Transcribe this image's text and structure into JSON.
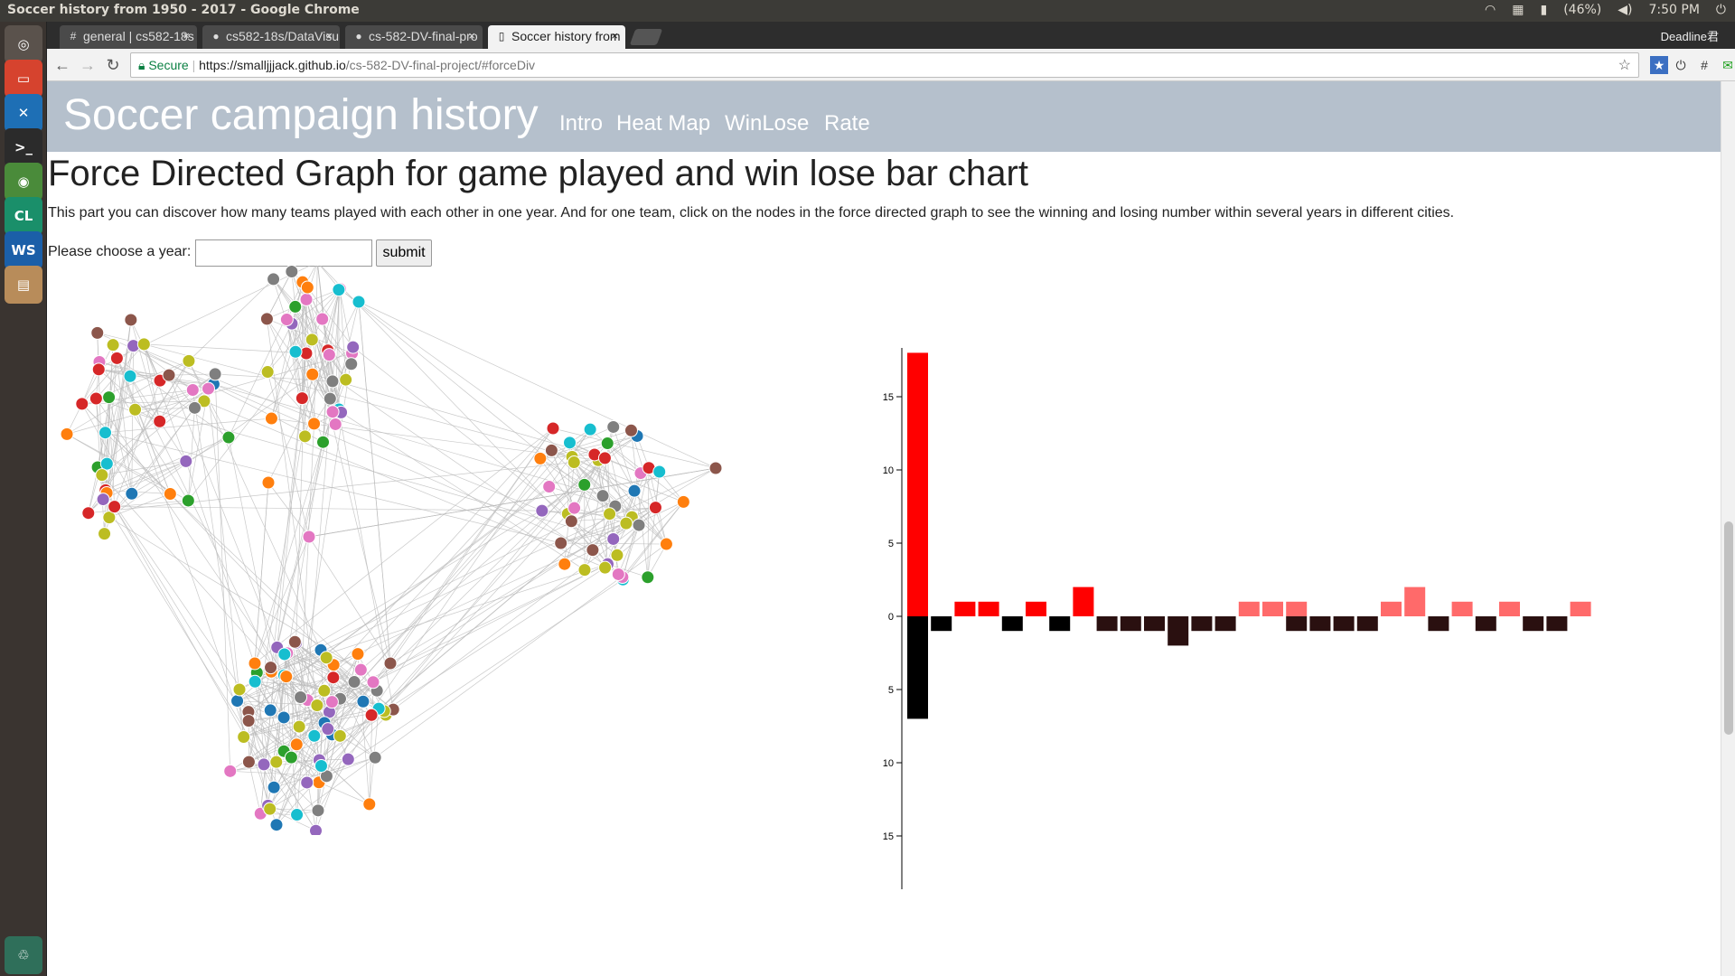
{
  "os": {
    "window_title": "Soccer history from 1950 - 2017 - Google Chrome",
    "battery": "(46%)",
    "clock": "7:50 PM"
  },
  "browser": {
    "tabs": [
      {
        "label": "general | cs582-18s",
        "icon": "slack-icon"
      },
      {
        "label": "cs582-18s/DataVisu",
        "icon": "github-icon"
      },
      {
        "label": "cs-582-DV-final-pro",
        "icon": "github-icon"
      },
      {
        "label": "Soccer history from",
        "icon": "page-icon"
      }
    ],
    "profile": "Deadline君",
    "secure_label": "Secure",
    "url_host": "https://smalljjjack.github.io",
    "url_path": "/cs-582-DV-final-project/#forceDiv"
  },
  "site": {
    "title": "Soccer campaign history",
    "nav": [
      "Intro",
      "Heat Map",
      "WinLose",
      "Rate"
    ]
  },
  "section": {
    "heading": "Force Directed Graph for game played and win lose bar chart",
    "intro": "This part you can discover how many teams played with each other in one year. And for one team, click on the nodes in the force directed graph to see the winning and losing number within several years in different cities.",
    "year_label": "Please choose a year:",
    "year_value": "",
    "submit_label": "submit"
  },
  "chart_data": {
    "type": "bar",
    "title": "",
    "xlabel": "",
    "ylabel": "",
    "ylim": [
      -18,
      18
    ],
    "yticks_top": [
      "15",
      "10",
      "5",
      "0"
    ],
    "yticks_bottom": [
      "5",
      "10",
      "15"
    ],
    "series": [
      {
        "values": [
          18,
          0,
          1,
          1,
          0,
          1,
          0,
          2,
          0,
          0,
          0,
          0,
          0,
          0,
          1,
          1,
          1,
          0,
          0,
          0,
          1,
          2,
          0,
          1,
          0,
          1,
          0,
          0,
          1
        ]
      },
      {
        "values": [
          -7,
          -1,
          0,
          0,
          -1,
          0,
          -1,
          0,
          -1,
          -1,
          -1,
          -2,
          -1,
          -1,
          0,
          0,
          -1,
          -1,
          -1,
          -1,
          0,
          0,
          -1,
          0,
          -1,
          0,
          -1,
          -1,
          0
        ]
      }
    ],
    "win_colors": [
      "#ff0000",
      "#ff6a6a"
    ],
    "loss_colors": [
      "#000000",
      "#2a1010"
    ]
  },
  "graph_colors": [
    "#1f77b4",
    "#ff7f0e",
    "#2ca02c",
    "#d62728",
    "#9467bd",
    "#8c564b",
    "#e377c2",
    "#7f7f7f",
    "#bcbd22",
    "#17becf"
  ]
}
